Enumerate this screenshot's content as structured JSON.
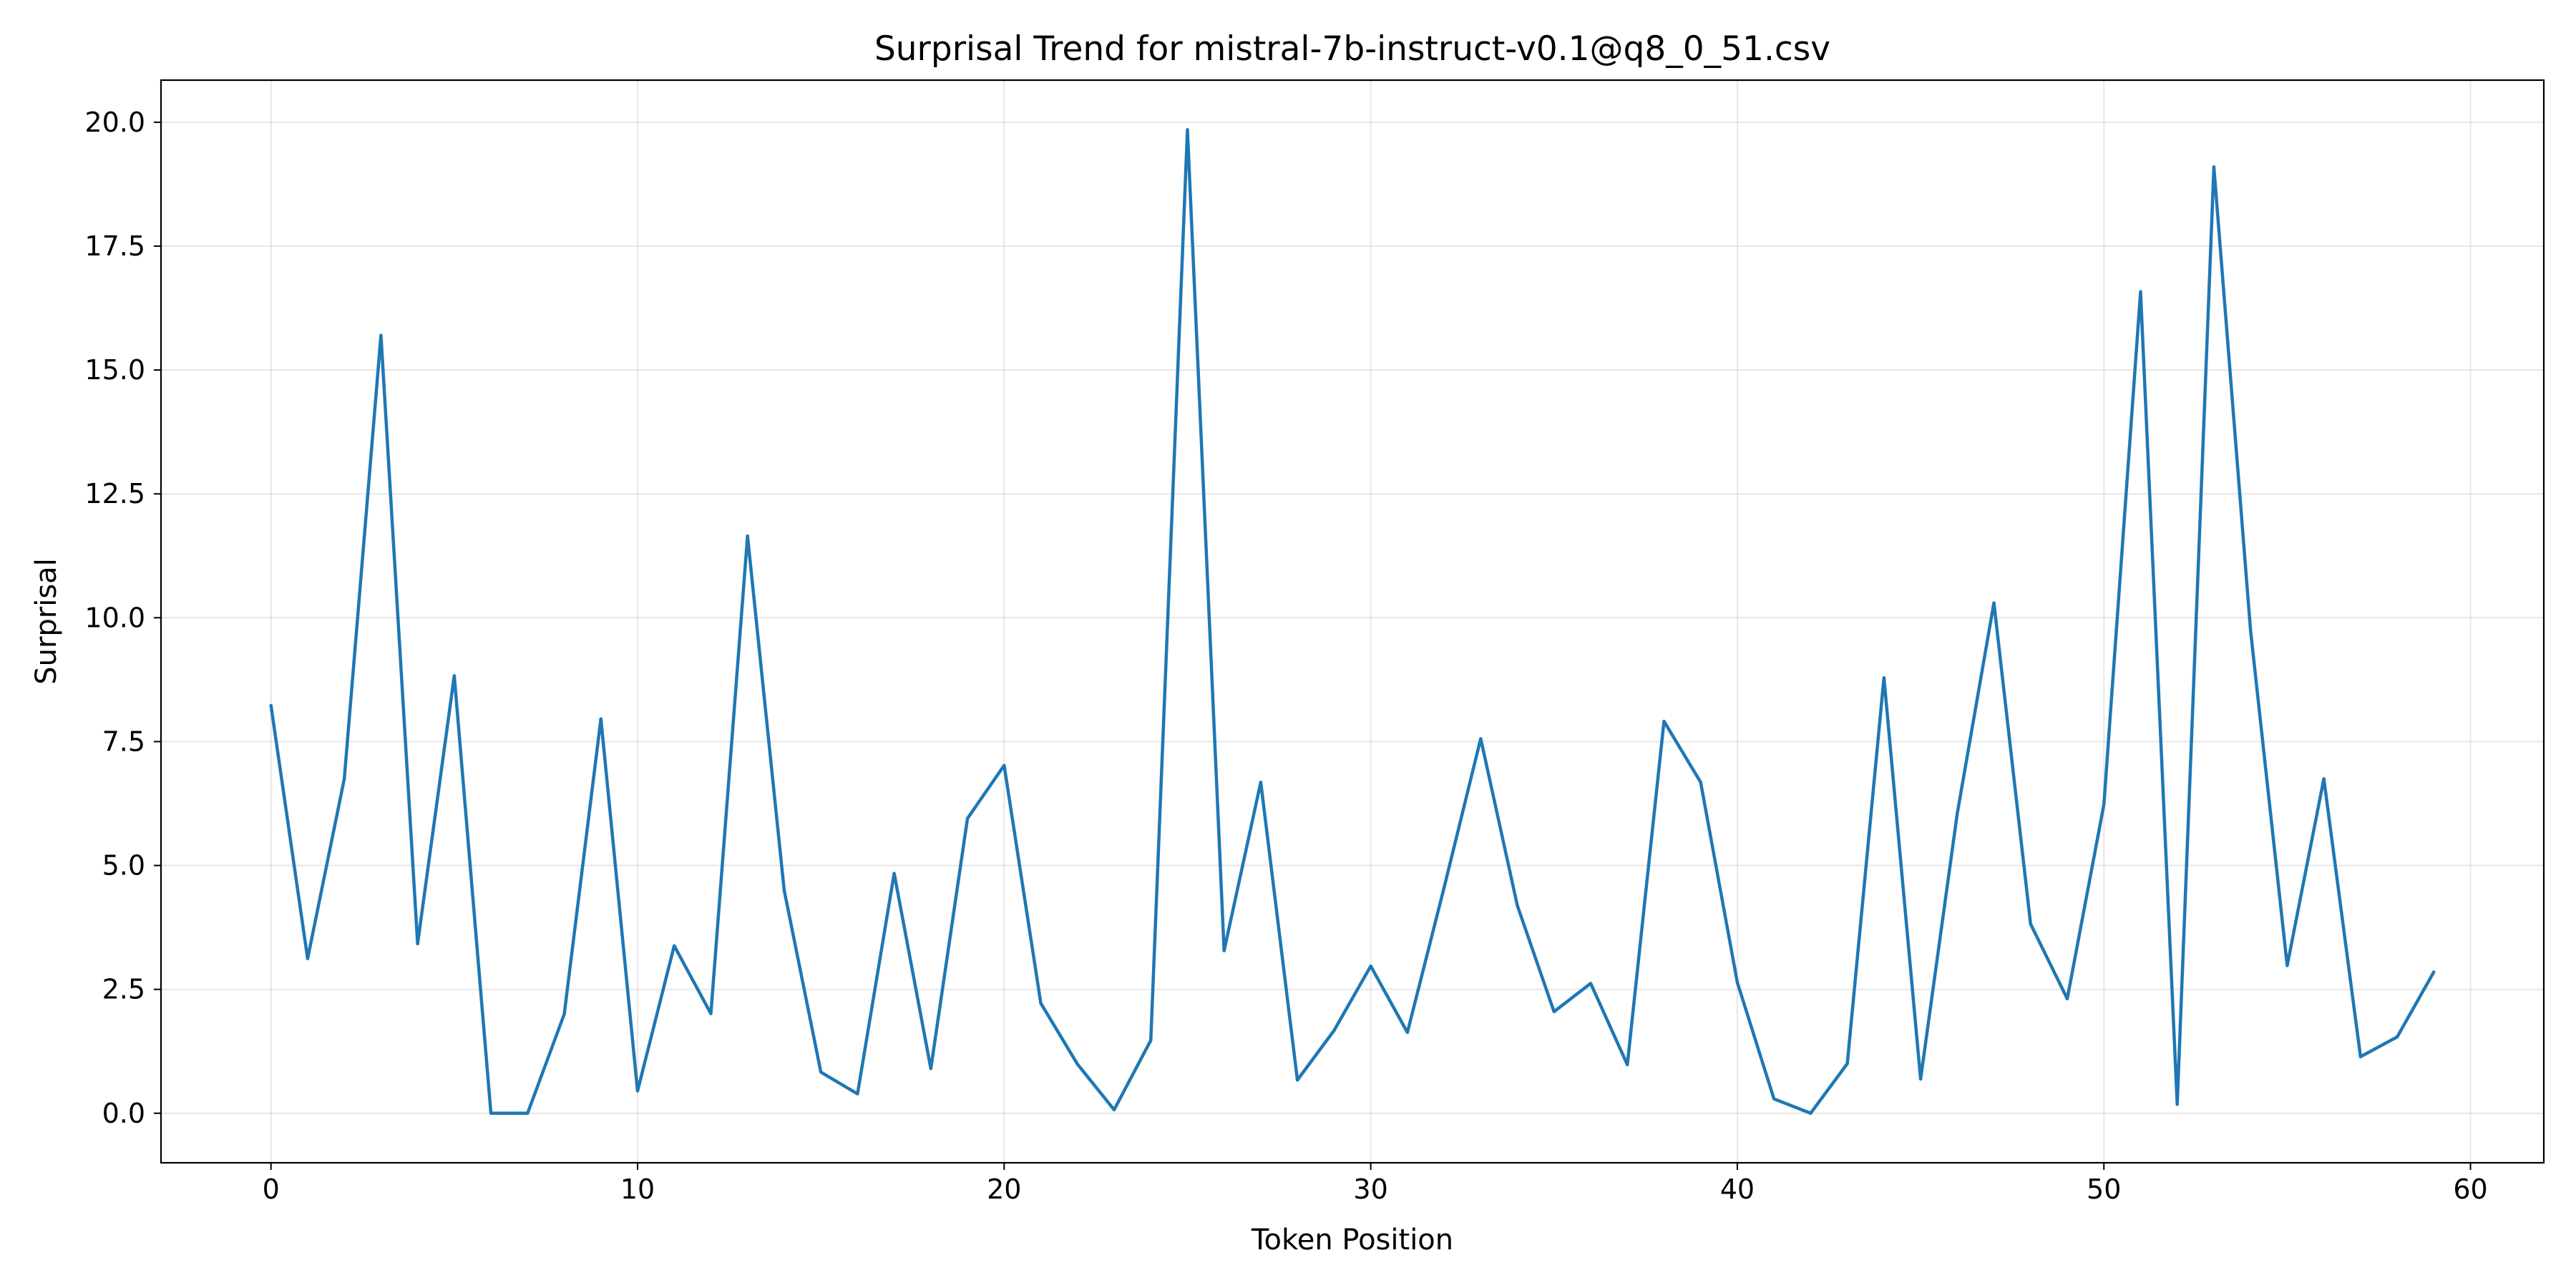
{
  "chart_data": {
    "type": "line",
    "title": "Surprisal Trend for mistral-7b-instruct-v0.1@q8_0_51.csv",
    "xlabel": "Token Position",
    "ylabel": "Surprisal",
    "xlim": [
      -3,
      62
    ],
    "ylim": [
      -1,
      20.85
    ],
    "x_ticks": [
      0,
      10,
      20,
      30,
      40,
      50,
      60
    ],
    "x_tick_labels": [
      "0",
      "10",
      "20",
      "30",
      "40",
      "50",
      "60"
    ],
    "y_ticks": [
      0,
      2.5,
      5,
      7.5,
      10,
      12.5,
      15,
      17.5,
      20
    ],
    "y_tick_labels": [
      "0.0",
      "2.5",
      "5.0",
      "7.5",
      "10.0",
      "12.5",
      "15.0",
      "17.5",
      "20.0"
    ],
    "grid": true,
    "legend": "none",
    "series": [
      {
        "color": "#1f77b4",
        "x": [
          0,
          1,
          2,
          3,
          4,
          5,
          6,
          7,
          8,
          9,
          10,
          11,
          12,
          13,
          14,
          15,
          16,
          17,
          18,
          19,
          20,
          21,
          22,
          23,
          24,
          25,
          26,
          27,
          28,
          29,
          30,
          31,
          32,
          33,
          34,
          35,
          36,
          37,
          38,
          39,
          40,
          41,
          42,
          43,
          44,
          45,
          46,
          47,
          48,
          49,
          50,
          51,
          52,
          53,
          54,
          55,
          56,
          57,
          58,
          59
        ],
        "values": [
          8.23,
          3.12,
          6.75,
          15.7,
          3.42,
          8.83,
          0.0,
          0.0,
          2.0,
          7.96,
          0.45,
          3.38,
          2.01,
          11.65,
          4.5,
          0.83,
          0.39,
          4.84,
          0.9,
          5.95,
          7.02,
          2.22,
          0.99,
          0.07,
          1.47,
          19.85,
          3.28,
          6.68,
          0.67,
          1.67,
          2.97,
          1.63,
          4.55,
          7.56,
          4.19,
          2.05,
          2.62,
          0.98,
          7.91,
          6.68,
          2.64,
          0.29,
          0.0,
          1.0,
          8.79,
          0.69,
          6.05,
          10.3,
          3.82,
          2.31,
          6.23,
          16.58,
          0.18,
          19.1,
          9.75,
          2.98,
          6.75,
          1.14,
          1.54,
          2.85
        ]
      }
    ]
  }
}
